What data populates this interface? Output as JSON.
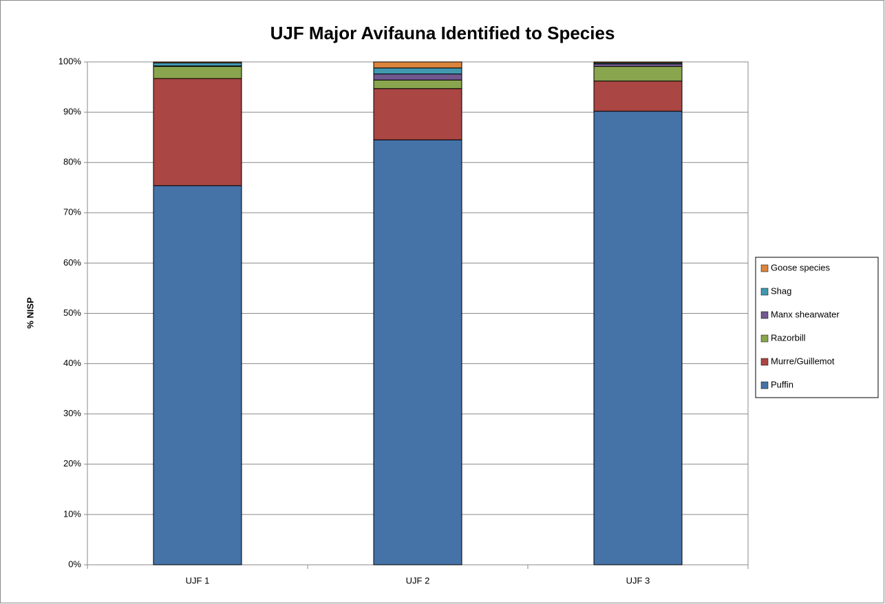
{
  "chart_data": {
    "type": "stacked_bar",
    "title": "UJF Major Avifauna Identified to Species",
    "ylabel": "% NISP",
    "categories": [
      "UJF 1",
      "UJF 2",
      "UJF 3"
    ],
    "series": [
      {
        "name": "Puffin",
        "color": "#4572a7",
        "values": [
          75.4,
          84.5,
          90.2
        ]
      },
      {
        "name": "Murre/Guillemot",
        "color": "#aa4643",
        "values": [
          21.3,
          10.2,
          6.0
        ]
      },
      {
        "name": "Razorbill",
        "color": "#89a54e",
        "values": [
          2.4,
          1.7,
          2.9
        ]
      },
      {
        "name": "Manx shearwater",
        "color": "#71588f",
        "values": [
          0.1,
          1.2,
          0.5
        ]
      },
      {
        "name": "Shag",
        "color": "#4198af",
        "values": [
          0.6,
          1.2,
          0.2
        ]
      },
      {
        "name": "Goose species",
        "color": "#db843d",
        "values": [
          0.2,
          1.2,
          0.2
        ]
      }
    ],
    "ylim": [
      0,
      100
    ],
    "yticks": [
      {
        "value": 0,
        "label": "0%"
      },
      {
        "value": 10,
        "label": "10%"
      },
      {
        "value": 20,
        "label": "20%"
      },
      {
        "value": 30,
        "label": "30%"
      },
      {
        "value": 40,
        "label": "40%"
      },
      {
        "value": 50,
        "label": "50%"
      },
      {
        "value": 60,
        "label": "60%"
      },
      {
        "value": 70,
        "label": "70%"
      },
      {
        "value": 80,
        "label": "80%"
      },
      {
        "value": 90,
        "label": "90%"
      },
      {
        "value": 100,
        "label": "100%"
      }
    ],
    "grid": true,
    "legend": "right"
  }
}
